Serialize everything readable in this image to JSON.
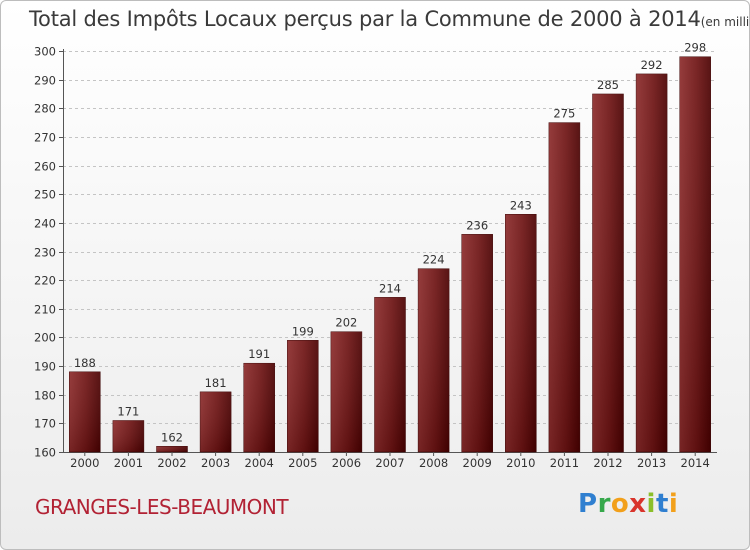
{
  "header": {
    "title": "Total des Impôts Locaux perçus par la Commune de 2000 à 2014",
    "unit": "(en milliers d'€)"
  },
  "footer": {
    "commune": "GRANGES-LES-BEAUMONT",
    "logo_letters": [
      "P",
      "r",
      "o",
      "x",
      "i",
      "t",
      "i"
    ]
  },
  "colors": {
    "bar_dark": "#4a0000",
    "bar_light": "#8c2b2b",
    "grid": "#bfbfbf",
    "commune": "#b22234"
  },
  "chart_data": {
    "type": "bar",
    "title": "Total des Impôts Locaux perçus par la Commune de 2000 à 2014",
    "xlabel": "",
    "ylabel": "",
    "categories": [
      "2000",
      "2001",
      "2002",
      "2003",
      "2004",
      "2005",
      "2006",
      "2007",
      "2008",
      "2009",
      "2010",
      "2011",
      "2012",
      "2013",
      "2014"
    ],
    "values": [
      188,
      171,
      162,
      181,
      191,
      199,
      202,
      214,
      224,
      236,
      243,
      275,
      285,
      292,
      298
    ],
    "ylim": [
      160,
      300
    ],
    "yticks": [
      160,
      170,
      180,
      190,
      200,
      210,
      220,
      230,
      240,
      250,
      260,
      270,
      280,
      290,
      300
    ],
    "grid": "horizontal dashed"
  }
}
